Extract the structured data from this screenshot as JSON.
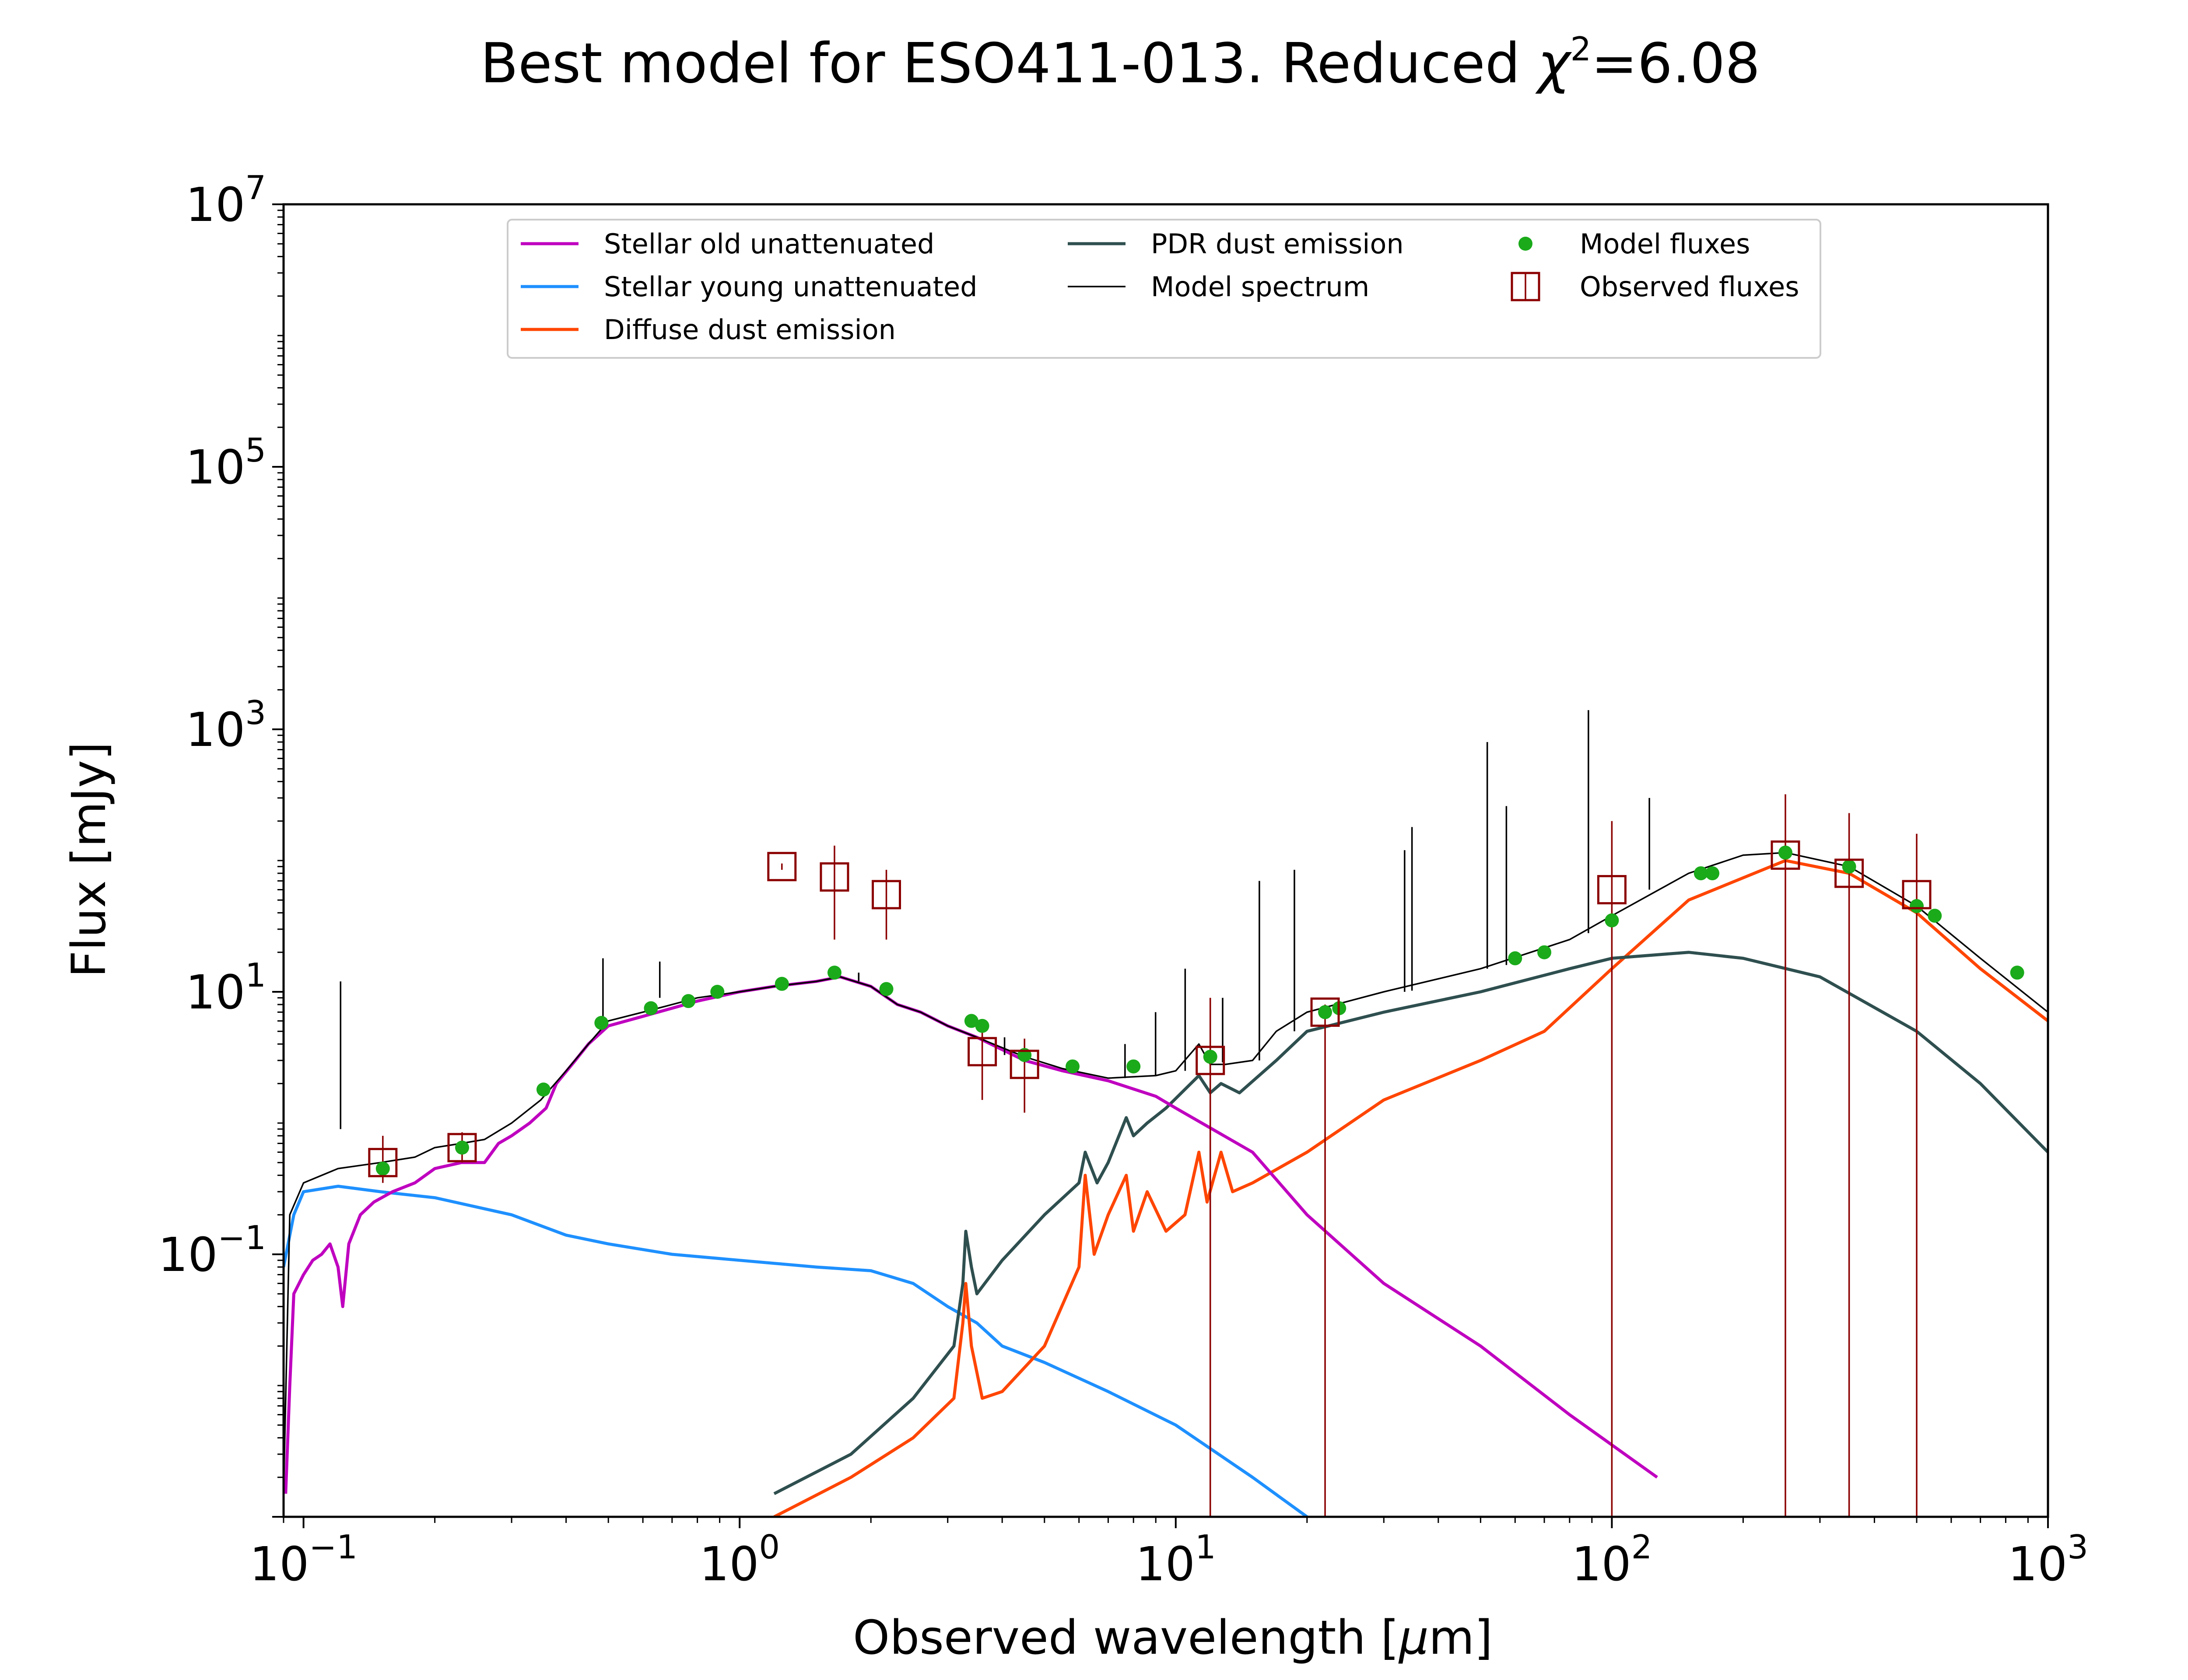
{
  "chart_data": {
    "type": "line",
    "title": {
      "prefix": "Best model for ESO411-013. Reduced ",
      "chi_symbol": "χ",
      "chi_exponent": "2",
      "suffix": "=6.08"
    },
    "xlabel": {
      "prefix": "Observed wavelength [",
      "mu": "μ",
      "suffix": "m]"
    },
    "ylabel": "Flux [mJy]",
    "x_scale": "log",
    "y_scale": "log",
    "xlim": [
      0.09,
      1000
    ],
    "ylim": [
      0.001,
      10000000
    ],
    "x_ticks": [
      {
        "value": 0.1,
        "base": "10",
        "exp": "−1"
      },
      {
        "value": 1,
        "base": "10",
        "exp": "0"
      },
      {
        "value": 10,
        "base": "10",
        "exp": "1"
      },
      {
        "value": 100,
        "base": "10",
        "exp": "2"
      },
      {
        "value": 1000,
        "base": "10",
        "exp": "3"
      }
    ],
    "y_ticks": [
      {
        "value": 0.1,
        "base": "10",
        "exp": "−1"
      },
      {
        "value": 10,
        "base": "10",
        "exp": "1"
      },
      {
        "value": 1000,
        "base": "10",
        "exp": "3"
      },
      {
        "value": 100000,
        "base": "10",
        "exp": "5"
      },
      {
        "value": 10000000,
        "base": "10",
        "exp": "7"
      }
    ],
    "grid": false,
    "legend_position": "top-center",
    "legend": [
      {
        "label": "Stellar old unattenuated",
        "kind": "line",
        "color": "#bf00bf"
      },
      {
        "label": "Stellar young unattenuated",
        "kind": "line",
        "color": "#1e90ff"
      },
      {
        "label": "Diffuse dust emission",
        "kind": "line",
        "color": "#ff4500"
      },
      {
        "label": "PDR dust emission",
        "kind": "line",
        "color": "#2f4f4f"
      },
      {
        "label": "Model spectrum",
        "kind": "thinline",
        "color": "#000000"
      },
      {
        "label": "Model fluxes",
        "kind": "dot",
        "color": "#1aaa1a"
      },
      {
        "label": "Observed fluxes",
        "kind": "square",
        "color": "#8b0000"
      }
    ],
    "series": [
      {
        "name": "Stellar old unattenuated",
        "color": "#bf00bf",
        "points": [
          [
            0.091,
            0.0015
          ],
          [
            0.093,
            0.01
          ],
          [
            0.095,
            0.05
          ],
          [
            0.1,
            0.07
          ],
          [
            0.105,
            0.09
          ],
          [
            0.11,
            0.1
          ],
          [
            0.115,
            0.12
          ],
          [
            0.12,
            0.08
          ],
          [
            0.123,
            0.04
          ],
          [
            0.127,
            0.12
          ],
          [
            0.135,
            0.2
          ],
          [
            0.145,
            0.25
          ],
          [
            0.16,
            0.3
          ],
          [
            0.18,
            0.35
          ],
          [
            0.2,
            0.45
          ],
          [
            0.23,
            0.5
          ],
          [
            0.26,
            0.5
          ],
          [
            0.28,
            0.7
          ],
          [
            0.3,
            0.8
          ],
          [
            0.33,
            1.0
          ],
          [
            0.36,
            1.3
          ],
          [
            0.38,
            2.0
          ],
          [
            0.42,
            3.0
          ],
          [
            0.45,
            4.0
          ],
          [
            0.5,
            5.5
          ],
          [
            0.6,
            6.5
          ],
          [
            0.7,
            7.5
          ],
          [
            0.8,
            8.5
          ],
          [
            1.0,
            10.0
          ],
          [
            1.2,
            11.0
          ],
          [
            1.5,
            12.0
          ],
          [
            1.7,
            13.0
          ],
          [
            2.0,
            11.0
          ],
          [
            2.3,
            8.0
          ],
          [
            2.6,
            7.0
          ],
          [
            3.0,
            5.5
          ],
          [
            3.5,
            4.5
          ],
          [
            4.5,
            3.0
          ],
          [
            5.5,
            2.5
          ],
          [
            7,
            2.1
          ],
          [
            9,
            1.6
          ],
          [
            10,
            1.3
          ],
          [
            15,
            0.6
          ],
          [
            20,
            0.2
          ],
          [
            30,
            0.06
          ],
          [
            50,
            0.02
          ],
          [
            80,
            0.006
          ],
          [
            127,
            0.002
          ]
        ]
      },
      {
        "name": "Stellar young unattenuated",
        "color": "#1e90ff",
        "points": [
          [
            0.09,
            0.08
          ],
          [
            0.095,
            0.2
          ],
          [
            0.1,
            0.3
          ],
          [
            0.12,
            0.33
          ],
          [
            0.15,
            0.3
          ],
          [
            0.2,
            0.27
          ],
          [
            0.3,
            0.2
          ],
          [
            0.4,
            0.14
          ],
          [
            0.5,
            0.12
          ],
          [
            0.7,
            0.1
          ],
          [
            1.0,
            0.09
          ],
          [
            1.5,
            0.08
          ],
          [
            2.0,
            0.075
          ],
          [
            2.5,
            0.06
          ],
          [
            3.0,
            0.04
          ],
          [
            3.5,
            0.03
          ],
          [
            4.0,
            0.02
          ],
          [
            5.0,
            0.015
          ],
          [
            7.0,
            0.009
          ],
          [
            10,
            0.005
          ],
          [
            15,
            0.002
          ],
          [
            20,
            0.001
          ]
        ]
      },
      {
        "name": "PDR dust emission",
        "color": "#2f4f4f",
        "points": [
          [
            1.2,
            0.0015
          ],
          [
            1.8,
            0.003
          ],
          [
            2.5,
            0.008
          ],
          [
            3.1,
            0.02
          ],
          [
            3.25,
            0.06
          ],
          [
            3.3,
            0.15
          ],
          [
            3.4,
            0.08
          ],
          [
            3.5,
            0.05
          ],
          [
            4.0,
            0.09
          ],
          [
            5.0,
            0.2
          ],
          [
            6.0,
            0.35
          ],
          [
            6.2,
            0.6
          ],
          [
            6.6,
            0.35
          ],
          [
            7.0,
            0.5
          ],
          [
            7.7,
            1.1
          ],
          [
            8.0,
            0.8
          ],
          [
            8.6,
            1.0
          ],
          [
            9.5,
            1.3
          ],
          [
            11.3,
            2.3
          ],
          [
            12,
            1.7
          ],
          [
            12.7,
            2.0
          ],
          [
            14,
            1.7
          ],
          [
            17,
            3.0
          ],
          [
            20,
            5.0
          ],
          [
            30,
            7.0
          ],
          [
            50,
            10.0
          ],
          [
            80,
            15.0
          ],
          [
            100,
            18.0
          ],
          [
            150,
            20.0
          ],
          [
            200,
            18.0
          ],
          [
            300,
            13.0
          ],
          [
            500,
            5.0
          ],
          [
            700,
            2.0
          ],
          [
            1000,
            0.6
          ]
        ]
      },
      {
        "name": "Diffuse dust emission",
        "color": "#ff4500",
        "points": [
          [
            1.2,
            0.001
          ],
          [
            1.8,
            0.002
          ],
          [
            2.5,
            0.004
          ],
          [
            3.1,
            0.008
          ],
          [
            3.25,
            0.03
          ],
          [
            3.3,
            0.06
          ],
          [
            3.4,
            0.02
          ],
          [
            3.6,
            0.008
          ],
          [
            4.0,
            0.009
          ],
          [
            5.0,
            0.02
          ],
          [
            6.0,
            0.08
          ],
          [
            6.2,
            0.4
          ],
          [
            6.5,
            0.1
          ],
          [
            7.0,
            0.2
          ],
          [
            7.7,
            0.4
          ],
          [
            8.0,
            0.15
          ],
          [
            8.6,
            0.3
          ],
          [
            9.5,
            0.15
          ],
          [
            10.5,
            0.2
          ],
          [
            11.3,
            0.6
          ],
          [
            11.8,
            0.25
          ],
          [
            12.7,
            0.6
          ],
          [
            13.5,
            0.3
          ],
          [
            15,
            0.35
          ],
          [
            20,
            0.6
          ],
          [
            30,
            1.5
          ],
          [
            50,
            3.0
          ],
          [
            70,
            5.0
          ],
          [
            100,
            15.0
          ],
          [
            150,
            50.0
          ],
          [
            250,
            100.0
          ],
          [
            350,
            80.0
          ],
          [
            500,
            40.0
          ],
          [
            700,
            15.0
          ],
          [
            1000,
            6.0
          ]
        ]
      },
      {
        "name": "Model spectrum",
        "color": "#000000",
        "width": "thin",
        "points": [
          [
            0.09,
            0.0015
          ],
          [
            0.093,
            0.2
          ],
          [
            0.1,
            0.35
          ],
          [
            0.12,
            0.45
          ],
          [
            0.15,
            0.5
          ],
          [
            0.18,
            0.55
          ],
          [
            0.2,
            0.65
          ],
          [
            0.23,
            0.7
          ],
          [
            0.26,
            0.75
          ],
          [
            0.3,
            1.0
          ],
          [
            0.35,
            1.5
          ],
          [
            0.4,
            2.5
          ],
          [
            0.45,
            4.0
          ],
          [
            0.5,
            6.0
          ],
          [
            0.6,
            7.0
          ],
          [
            0.7,
            8.0
          ],
          [
            0.8,
            9.0
          ],
          [
            1.0,
            10.0
          ],
          [
            1.2,
            11.0
          ],
          [
            1.5,
            12.0
          ],
          [
            1.7,
            13.0
          ],
          [
            2.0,
            11.0
          ],
          [
            2.3,
            8.0
          ],
          [
            2.6,
            7.0
          ],
          [
            3.0,
            5.5
          ],
          [
            3.5,
            4.5
          ],
          [
            4.5,
            3.2
          ],
          [
            5.5,
            2.6
          ],
          [
            7,
            2.2
          ],
          [
            9,
            2.3
          ],
          [
            10,
            2.5
          ],
          [
            11.3,
            4.0
          ],
          [
            12,
            2.8
          ],
          [
            13,
            2.8
          ],
          [
            15,
            3.0
          ],
          [
            17,
            5.0
          ],
          [
            20,
            7.0
          ],
          [
            30,
            10.0
          ],
          [
            50,
            15.0
          ],
          [
            80,
            25.0
          ],
          [
            100,
            38.0
          ],
          [
            150,
            80.0
          ],
          [
            200,
            110.0
          ],
          [
            250,
            115.0
          ],
          [
            350,
            90.0
          ],
          [
            500,
            45.0
          ],
          [
            700,
            18.0
          ],
          [
            1000,
            7.0
          ]
        ]
      }
    ],
    "emission_lines": [
      [
        0.1216,
        0.9,
        12
      ],
      [
        0.486,
        5.5,
        18
      ],
      [
        0.656,
        9.0,
        17
      ],
      [
        1.875,
        12.0,
        14
      ],
      [
        4.05,
        3.3,
        4.5
      ],
      [
        7.65,
        2.2,
        4
      ],
      [
        8.99,
        2.3,
        7
      ],
      [
        10.51,
        2.5,
        15
      ],
      [
        12.81,
        2.9,
        9
      ],
      [
        15.55,
        3.0,
        70
      ],
      [
        18.71,
        5.0,
        85
      ],
      [
        33.48,
        10.0,
        120
      ],
      [
        34.81,
        10.2,
        180
      ],
      [
        51.8,
        15.0,
        800
      ],
      [
        57.3,
        16.0,
        260
      ],
      [
        88.36,
        28.0,
        1400
      ],
      [
        121.9,
        60.0,
        300
      ]
    ],
    "model_fluxes": [
      [
        0.152,
        0.45
      ],
      [
        0.231,
        0.65
      ],
      [
        0.355,
        1.8
      ],
      [
        0.482,
        5.8
      ],
      [
        0.626,
        7.5
      ],
      [
        0.763,
        8.5
      ],
      [
        0.889,
        10.0
      ],
      [
        1.25,
        11.5
      ],
      [
        1.65,
        14.0
      ],
      [
        2.17,
        10.5
      ],
      [
        3.4,
        6.0
      ],
      [
        3.6,
        5.5
      ],
      [
        4.5,
        3.3
      ],
      [
        5.8,
        2.7
      ],
      [
        8.0,
        2.7
      ],
      [
        12,
        3.2
      ],
      [
        22,
        7.0
      ],
      [
        23.7,
        7.5
      ],
      [
        60,
        18.0
      ],
      [
        70,
        20.0
      ],
      [
        100,
        35.0
      ],
      [
        160,
        80.0
      ],
      [
        170,
        80.0
      ],
      [
        250,
        115.0
      ],
      [
        350,
        90.0
      ],
      [
        500,
        45.0
      ],
      [
        550,
        38.0
      ],
      [
        850,
        14.0
      ]
    ],
    "observed_fluxes": [
      {
        "x": 0.152,
        "y": 0.5,
        "ylo": 0.35,
        "yhi": 0.8
      },
      {
        "x": 0.231,
        "y": 0.65,
        "ylo": 0.5,
        "yhi": 0.85
      },
      {
        "x": 1.25,
        "y": 90.0,
        "ylo": 85.0,
        "yhi": 95.0
      },
      {
        "x": 1.65,
        "y": 75.0,
        "ylo": 25.0,
        "yhi": 130.0
      },
      {
        "x": 2.17,
        "y": 55.0,
        "ylo": 25.0,
        "yhi": 85.0
      },
      {
        "x": 3.6,
        "y": 3.5,
        "ylo": 1.5,
        "yhi": 5.5
      },
      {
        "x": 4.5,
        "y": 2.8,
        "ylo": 1.2,
        "yhi": 4.4
      },
      {
        "x": 12,
        "y": 3.0,
        "ylo": 0.001,
        "yhi": 9.0
      },
      {
        "x": 22,
        "y": 7.0,
        "ylo": 0.001,
        "yhi": 8.0
      },
      {
        "x": 100,
        "y": 60.0,
        "ylo": 0.001,
        "yhi": 200.0
      },
      {
        "x": 250,
        "y": 110.0,
        "ylo": 0.001,
        "yhi": 320.0
      },
      {
        "x": 350,
        "y": 80.0,
        "ylo": 0.001,
        "yhi": 230.0
      },
      {
        "x": 500,
        "y": 55.0,
        "ylo": 0.001,
        "yhi": 160.0
      }
    ]
  }
}
